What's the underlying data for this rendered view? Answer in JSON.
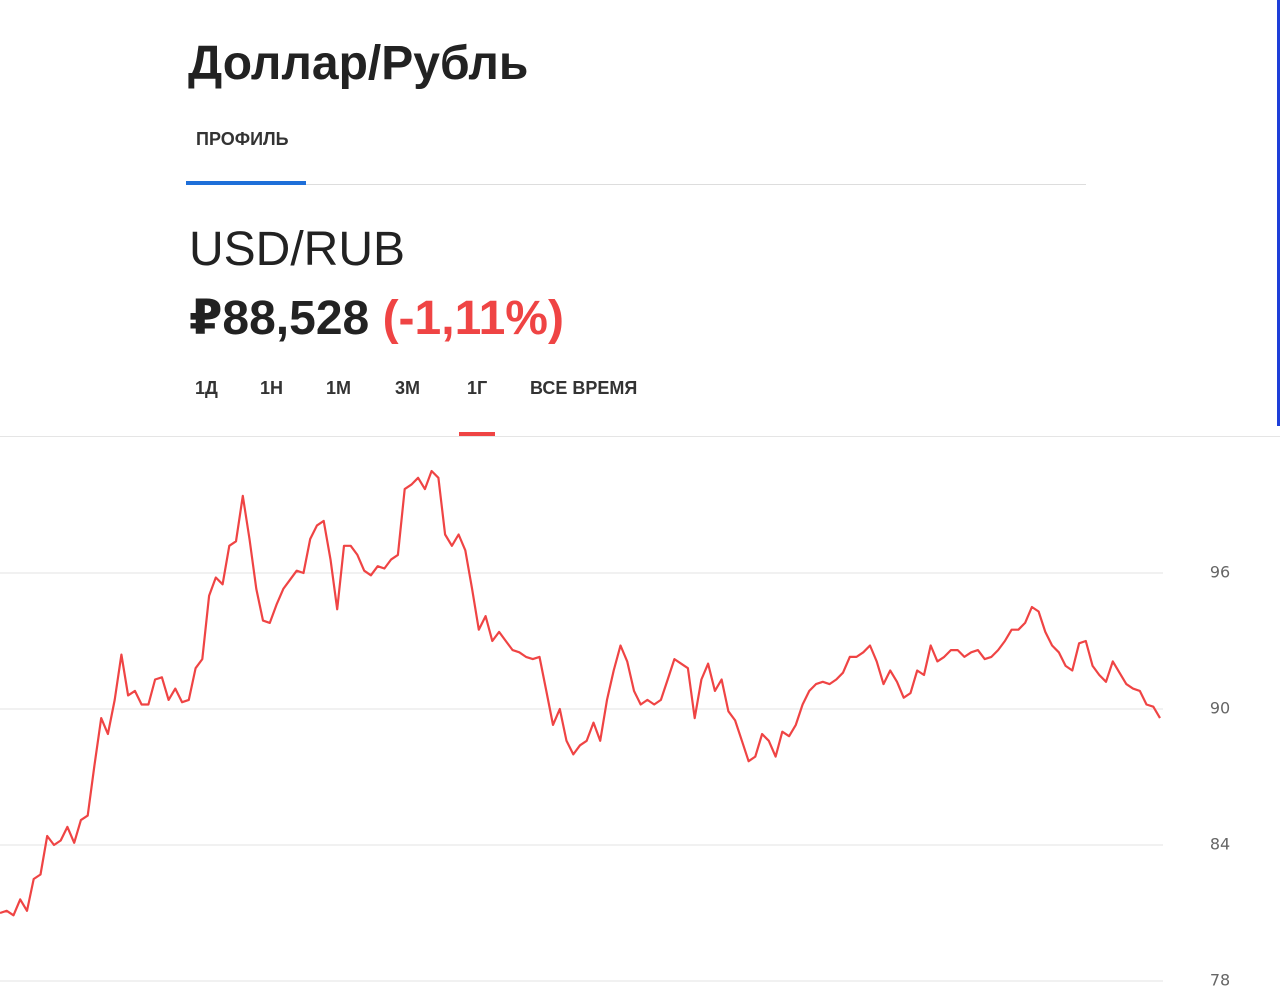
{
  "header": {
    "title": "Доллар/Рубль",
    "tabs": [
      "ПРОФИЛЬ"
    ]
  },
  "quote": {
    "symbol": "USD/RUB",
    "price": "₽88,528",
    "change": "(-1,11%)"
  },
  "ranges": [
    "1Д",
    "1Н",
    "1М",
    "3М",
    "1Г",
    "ВСЕ ВРЕМЯ"
  ],
  "active_range": 4,
  "chart_data": {
    "type": "line",
    "color": "#ef4444",
    "grid": true,
    "ylim": [
      77,
      102
    ],
    "yticks": [
      78,
      84,
      90,
      96
    ],
    "values": [
      81.0,
      81.1,
      80.9,
      81.6,
      81.1,
      82.5,
      82.7,
      84.4,
      84.0,
      84.2,
      84.8,
      84.1,
      85.1,
      85.3,
      87.5,
      89.6,
      88.9,
      90.4,
      92.4,
      90.6,
      90.8,
      90.2,
      90.2,
      91.3,
      91.4,
      90.4,
      90.9,
      90.3,
      90.4,
      91.8,
      92.2,
      95.0,
      95.8,
      95.5,
      97.2,
      97.4,
      99.4,
      97.5,
      95.3,
      93.9,
      93.8,
      94.6,
      95.3,
      95.7,
      96.1,
      96.0,
      97.5,
      98.1,
      98.3,
      96.6,
      94.4,
      97.2,
      97.2,
      96.8,
      96.1,
      95.9,
      96.3,
      96.2,
      96.6,
      96.8,
      99.7,
      99.9,
      100.2,
      99.7,
      100.5,
      100.2,
      97.7,
      97.2,
      97.7,
      97.0,
      95.3,
      93.5,
      94.1,
      93.0,
      93.4,
      93.0,
      92.6,
      92.5,
      92.3,
      92.2,
      92.3,
      90.8,
      89.3,
      90.0,
      88.6,
      88.0,
      88.4,
      88.6,
      89.4,
      88.6,
      90.4,
      91.7,
      92.8,
      92.1,
      90.8,
      90.2,
      90.4,
      90.2,
      90.4,
      91.3,
      92.2,
      92.0,
      91.8,
      89.6,
      91.3,
      92.0,
      90.8,
      91.3,
      89.9,
      89.5,
      88.6,
      87.7,
      87.9,
      88.9,
      88.6,
      87.9,
      89.0,
      88.8,
      89.3,
      90.2,
      90.8,
      91.1,
      91.2,
      91.1,
      91.3,
      91.6,
      92.3,
      92.3,
      92.5,
      92.8,
      92.1,
      91.1,
      91.7,
      91.2,
      90.5,
      90.7,
      91.7,
      91.5,
      92.8,
      92.1,
      92.3,
      92.6,
      92.6,
      92.3,
      92.5,
      92.6,
      92.2,
      92.3,
      92.6,
      93.0,
      93.5,
      93.5,
      93.8,
      94.5,
      94.3,
      93.4,
      92.8,
      92.5,
      91.9,
      91.7,
      92.9,
      93.0,
      91.9,
      91.5,
      91.2,
      92.1,
      91.6,
      91.1,
      90.9,
      90.8,
      90.2,
      90.1,
      89.6
    ]
  }
}
